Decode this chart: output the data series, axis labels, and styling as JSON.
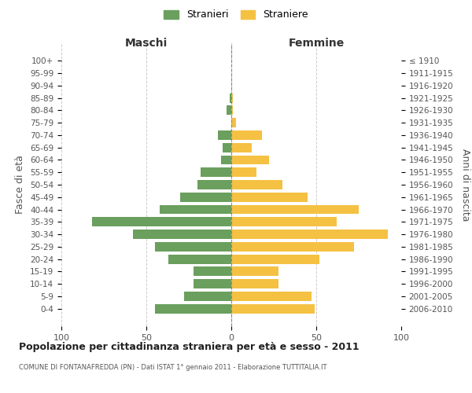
{
  "age_groups": [
    "0-4",
    "5-9",
    "10-14",
    "15-19",
    "20-24",
    "25-29",
    "30-34",
    "35-39",
    "40-44",
    "45-49",
    "50-54",
    "55-59",
    "60-64",
    "65-69",
    "70-74",
    "75-79",
    "80-84",
    "85-89",
    "90-94",
    "95-99",
    "100+"
  ],
  "birth_years": [
    "2006-2010",
    "2001-2005",
    "1996-2000",
    "1991-1995",
    "1986-1990",
    "1981-1985",
    "1976-1980",
    "1971-1975",
    "1966-1970",
    "1961-1965",
    "1956-1960",
    "1951-1955",
    "1946-1950",
    "1941-1945",
    "1936-1940",
    "1931-1935",
    "1926-1930",
    "1921-1925",
    "1916-1920",
    "1911-1915",
    "≤ 1910"
  ],
  "males": [
    45,
    28,
    22,
    22,
    37,
    45,
    58,
    82,
    42,
    30,
    20,
    18,
    6,
    5,
    8,
    0,
    3,
    1,
    0,
    0,
    0
  ],
  "females": [
    49,
    47,
    28,
    28,
    52,
    72,
    92,
    62,
    75,
    45,
    30,
    15,
    22,
    12,
    18,
    3,
    1,
    1,
    0,
    0,
    0
  ],
  "male_color": "#6a9f5e",
  "female_color": "#f5c143",
  "background_color": "#ffffff",
  "grid_color": "#cccccc",
  "title": "Popolazione per cittadinanza straniera per età e sesso - 2011",
  "subtitle": "COMUNE DI FONTANAFREDDA (PN) - Dati ISTAT 1° gennaio 2011 - Elaborazione TUTTITALIA.IT",
  "xlabel_left": "Maschi",
  "xlabel_right": "Femmine",
  "ylabel_left": "Fasce di età",
  "ylabel_right": "Anni di nascita",
  "legend_male": "Stranieri",
  "legend_female": "Straniere",
  "xlim": 100
}
